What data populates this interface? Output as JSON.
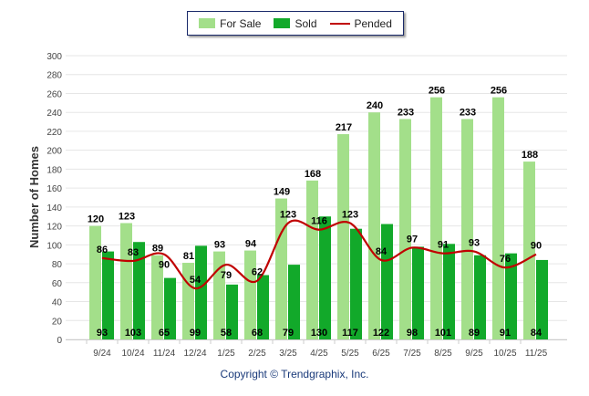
{
  "legend": {
    "for_sale": "For Sale",
    "sold": "Sold",
    "pended": "Pended"
  },
  "copyright": "Copyright © Trendgraphix, Inc.",
  "colors": {
    "for_sale": "#a3df8a",
    "sold": "#12a92a",
    "pended": "#c00000"
  },
  "chart_data": {
    "type": "bar",
    "ylabel": "Number of Homes",
    "xlabel": "",
    "ylim": [
      0,
      300
    ],
    "yticks": [
      0,
      20,
      40,
      60,
      80,
      100,
      120,
      140,
      160,
      180,
      200,
      220,
      240,
      260,
      280,
      300
    ],
    "categories": [
      "9/24",
      "10/24",
      "11/24",
      "12/24",
      "1/25",
      "2/25",
      "3/25",
      "4/25",
      "5/25",
      "6/25",
      "7/25",
      "8/25",
      "9/25",
      "10/25",
      "11/25"
    ],
    "series": [
      {
        "name": "For Sale",
        "type": "bar",
        "values": [
          120,
          123,
          89,
          81,
          93,
          94,
          149,
          168,
          217,
          240,
          233,
          256,
          233,
          256,
          188
        ]
      },
      {
        "name": "Sold",
        "type": "bar",
        "values": [
          93,
          103,
          65,
          99,
          58,
          68,
          79,
          130,
          117,
          122,
          98,
          101,
          89,
          91,
          84
        ]
      },
      {
        "name": "Pended",
        "type": "line",
        "values": [
          86,
          83,
          90,
          54,
          79,
          62,
          123,
          116,
          123,
          84,
          97,
          91,
          93,
          76,
          90
        ]
      }
    ]
  }
}
